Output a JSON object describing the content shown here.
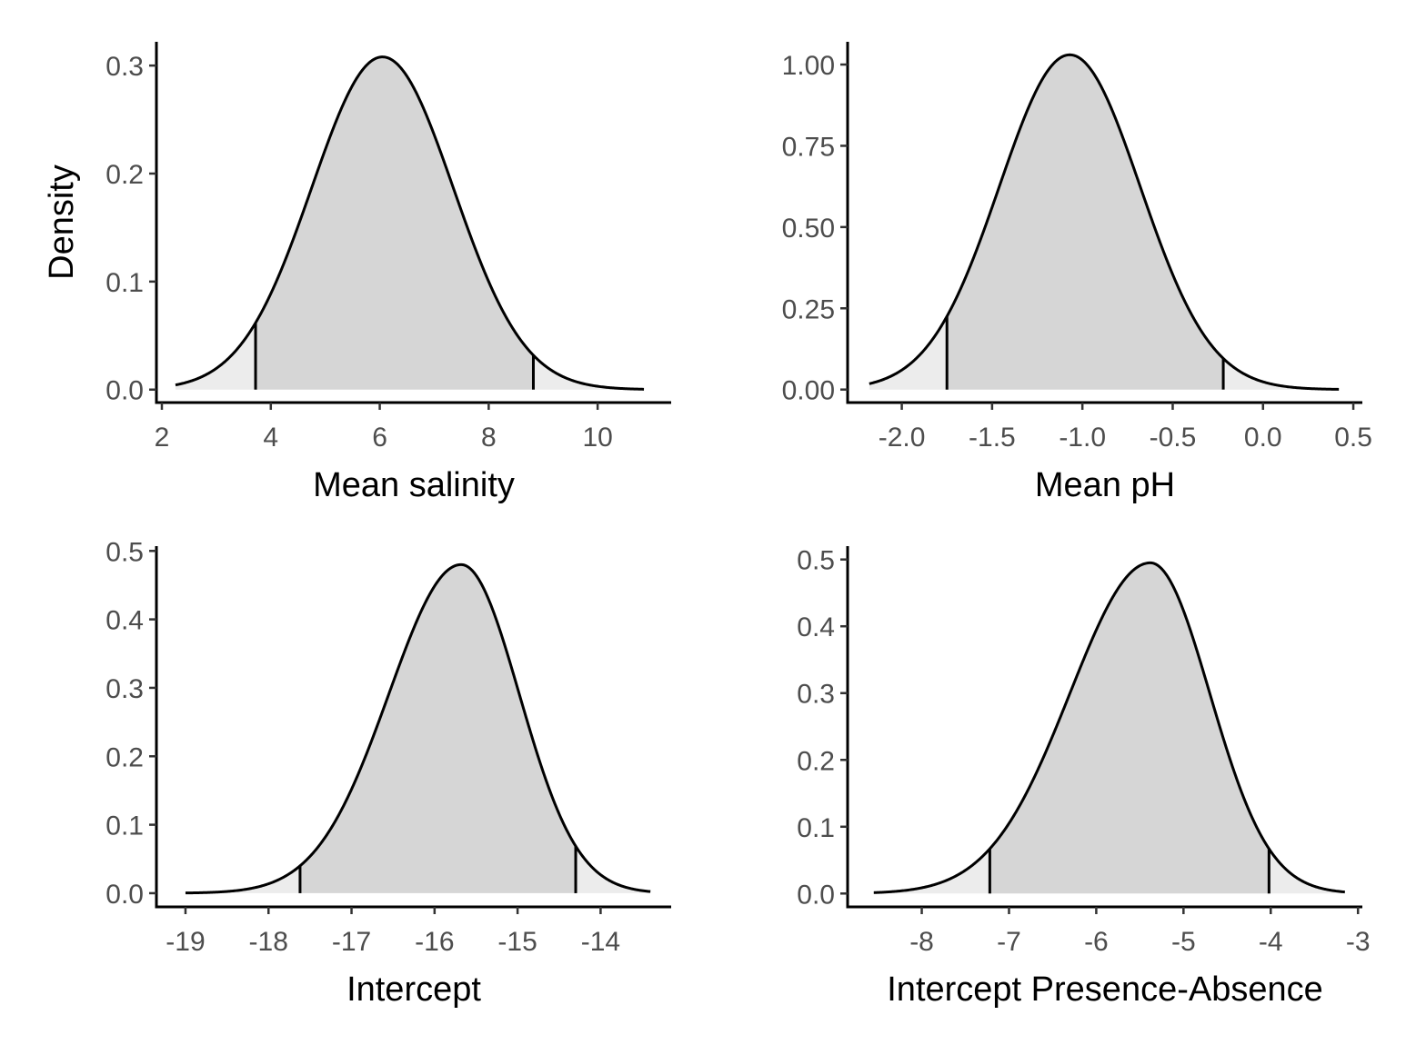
{
  "colors": {
    "central_fill": "#d6d6d6",
    "tail_fill": "#ececec",
    "curve": "#000000",
    "axis": "#000000",
    "tick_label": "#4d4d4d"
  },
  "chart_data": [
    {
      "type": "area",
      "xlabel": "Mean salinity",
      "ylabel": "Density",
      "xlim": [
        1.9,
        11.35
      ],
      "ylim": [
        -0.012,
        0.322
      ],
      "xticks": [
        "2",
        "4",
        "6",
        "8",
        "10"
      ],
      "yticks": [
        "0.0",
        "0.1",
        "0.2",
        "0.3"
      ],
      "density": {
        "mean": 6.05,
        "sd": 1.3,
        "peak": 0.308,
        "from": 2.25,
        "to": 10.85
      },
      "interval": [
        3.72,
        8.82
      ],
      "grid": false
    },
    {
      "type": "area",
      "xlabel": "Mean pH",
      "ylabel": "",
      "xlim": [
        -2.3,
        0.55
      ],
      "ylim": [
        -0.04,
        1.07
      ],
      "xticks": [
        "-2.0",
        "-1.5",
        "-1.0",
        "-0.5",
        "0.0",
        "0.5"
      ],
      "yticks": [
        "0.00",
        "0.25",
        "0.50",
        "0.75",
        "1.00"
      ],
      "density": {
        "mean": -1.07,
        "sd": 0.39,
        "peak": 1.03,
        "from": -2.18,
        "to": 0.42
      },
      "interval": [
        -1.75,
        -0.22
      ],
      "grid": false
    },
    {
      "type": "area",
      "xlabel": "Intercept",
      "ylabel": "",
      "xlim": [
        -19.35,
        -13.15
      ],
      "ylim": [
        -0.02,
        0.507
      ],
      "xticks": [
        "-19",
        "-18",
        "-17",
        "-16",
        "-15",
        "-14"
      ],
      "yticks": [
        "0.0",
        "0.1",
        "0.2",
        "0.3",
        "0.4",
        "0.5"
      ],
      "density": {
        "mean": -15.68,
        "sd": 0.72,
        "sdLeft": 0.87,
        "sdRight": 0.7,
        "peak": 0.48,
        "from": -19.0,
        "to": -13.4
      },
      "interval": [
        -17.62,
        -14.3
      ],
      "grid": false
    },
    {
      "type": "area",
      "xlabel": "Intercept Presence-Absence",
      "ylabel": "",
      "xlim": [
        -8.85,
        -2.95
      ],
      "ylim": [
        -0.02,
        0.52
      ],
      "xticks": [
        "-8",
        "-7",
        "-6",
        "-5",
        "-4",
        "-3"
      ],
      "yticks": [
        "0.0",
        "0.1",
        "0.2",
        "0.3",
        "0.4",
        "0.5"
      ],
      "density": {
        "mean": -5.38,
        "sd": 0.75,
        "sdLeft": 0.92,
        "sdRight": 0.68,
        "peak": 0.495,
        "from": -8.55,
        "to": -3.15
      },
      "interval": [
        -7.22,
        -4.02
      ],
      "grid": false
    }
  ]
}
